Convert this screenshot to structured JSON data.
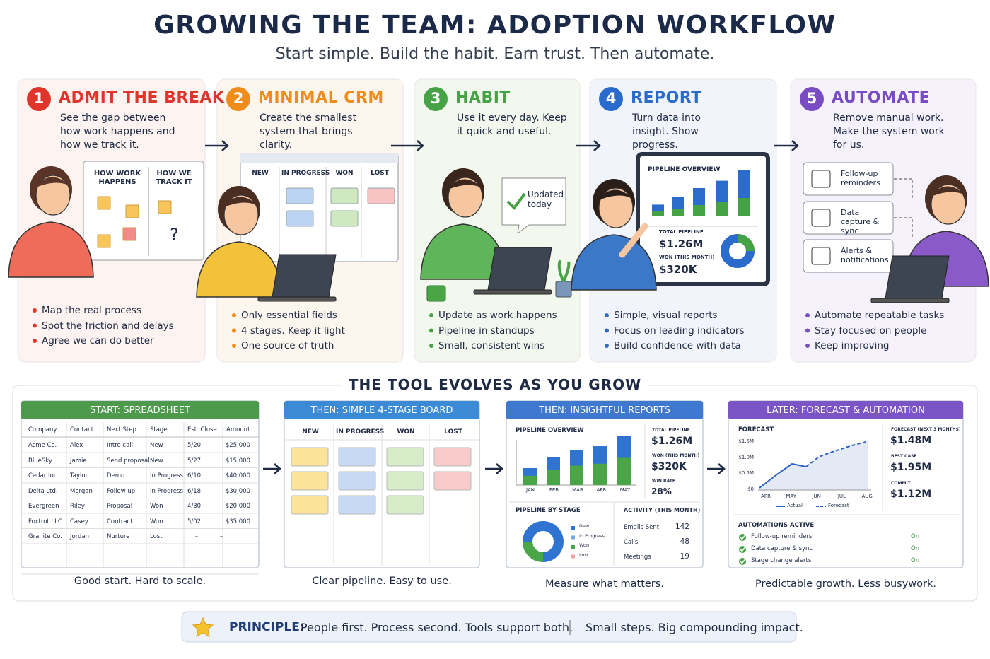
{
  "header": {
    "title": "GROWING THE TEAM: ADOPTION WORKFLOW",
    "subtitle": "Start simple. Build the habit. Earn trust. Then automate."
  },
  "steps": [
    {
      "number": 1,
      "title": "ADMIT THE BREAK",
      "color": "#e0352b",
      "description": "See the gap between how work happens and how we track it.",
      "bullets": [
        "Map the real process",
        "Spot the friction and delays",
        "Agree we can do better"
      ],
      "visual": {
        "columns": [
          "HOW WORK HAPPENS",
          "HOW WE TRACK IT"
        ],
        "mark": "?"
      }
    },
    {
      "number": 2,
      "title": "MINIMAL CRM",
      "color": "#f08c1a",
      "description": "Create the smallest system that brings clarity.",
      "bullets": [
        "Only essential fields",
        "4 stages. Keep it light",
        "One source of truth"
      ],
      "visual": {
        "columns": [
          "NEW",
          "IN PROGRESS",
          "WON",
          "LOST"
        ]
      }
    },
    {
      "number": 3,
      "title": "HABIT",
      "color": "#45a345",
      "description": "Use it every day. Keep it quick and useful.",
      "bullets": [
        "Update as work happens",
        "Pipeline in standups",
        "Small, consistent wins"
      ],
      "visual": {
        "bubble": "Updated today"
      }
    },
    {
      "number": 4,
      "title": "REPORT",
      "color": "#2a6bcc",
      "description": "Turn data into insight. Show progress.",
      "bullets": [
        "Simple, visual reports",
        "Focus on leading indicators",
        "Build confidence with data"
      ],
      "visual": {
        "title": "PIPELINE OVERVIEW",
        "metrics": [
          {
            "label": "TOTAL PIPELINE",
            "value": "$1.26M"
          },
          {
            "label": "WON (THIS MONTH)",
            "value": "$320K"
          }
        ]
      }
    },
    {
      "number": 5,
      "title": "AUTOMATE",
      "color": "#7a4cc4",
      "description": "Remove manual work. Make the system work for us.",
      "bullets": [
        "Automate repeatable tasks",
        "Stay focused on people",
        "Keep improving"
      ],
      "visual": {
        "items": [
          "Follow-up reminders",
          "Data capture & sync",
          "Alerts & notifications"
        ]
      }
    }
  ],
  "section_title": "THE TOOL EVOLVES AS YOU GROW",
  "tools": [
    {
      "title": "START: SPREADSHEET",
      "color": "#4e9a4c",
      "columns": [
        "Company",
        "Contact",
        "Next Step",
        "Stage",
        "Est. Close",
        "Amount"
      ],
      "rows": [
        [
          "Acme Co.",
          "Alex",
          "Intro call",
          "New",
          "5/20",
          "$25,000"
        ],
        [
          "BlueSky",
          "Jamie",
          "Send proposal",
          "New",
          "5/27",
          "$15,000"
        ],
        [
          "Cedar Inc.",
          "Taylor",
          "Demo",
          "In Progress",
          "6/10",
          "$40,000"
        ],
        [
          "Delta Ltd.",
          "Morgan",
          "Follow up",
          "In Progress",
          "6/18",
          "$30,000"
        ],
        [
          "Evergreen",
          "Riley",
          "Proposal",
          "Won",
          "4/30",
          "$20,000"
        ],
        [
          "Foxtrot LLC",
          "Casey",
          "Contract",
          "Won",
          "5/02",
          "$35,000"
        ],
        [
          "Granite Co.",
          "Jordan",
          "Nurture",
          "Lost",
          "–",
          "–"
        ]
      ],
      "caption": "Good start. Hard to scale."
    },
    {
      "title": "THEN: SIMPLE 4-STAGE BOARD",
      "color": "#3a8ad6",
      "columns": [
        "NEW",
        "IN PROGRESS",
        "WON",
        "LOST"
      ],
      "caption": "Clear pipeline. Easy to use."
    },
    {
      "title": "THEN: INSIGHTFUL REPORTS",
      "color": "#3f78cf",
      "overview_title": "PIPELINE OVERVIEW",
      "months": [
        "JAN",
        "FEB",
        "MAR",
        "APR",
        "MAY"
      ],
      "metrics": [
        {
          "label": "TOTAL PIPELINE",
          "value": "$1.26M"
        },
        {
          "label": "WON (THIS MONTH)",
          "value": "$320K"
        },
        {
          "label": "WIN RATE",
          "value": "28%"
        }
      ],
      "stage_title": "PIPELINE BY STAGE",
      "stages": [
        "New",
        "In Progress",
        "Won",
        "Lost"
      ],
      "activity_title": "ACTIVITY (THIS MONTH)",
      "activity": [
        {
          "label": "Emails Sent",
          "value": 142
        },
        {
          "label": "Calls",
          "value": 48
        },
        {
          "label": "Meetings",
          "value": 19
        }
      ],
      "caption": "Measure what matters."
    },
    {
      "title": "LATER: FORECAST & AUTOMATION",
      "color": "#7b55c6",
      "forecast_title": "FORECAST",
      "y_labels": [
        "$1.5M",
        "$1.0M",
        "$0.5M",
        "$0"
      ],
      "months": [
        "APR",
        "MAY",
        "JUN",
        "JUL",
        "AUG"
      ],
      "legend": [
        "Actual",
        "Forecast"
      ],
      "metrics": [
        {
          "label": "FORECAST (NEXT 3 MONTHS)",
          "value": "$1.48M"
        },
        {
          "label": "BEST CASE",
          "value": "$1.95M"
        },
        {
          "label": "COMMIT",
          "value": "$1.12M"
        }
      ],
      "automations_title": "AUTOMATIONS ACTIVE",
      "automations": [
        {
          "label": "Follow-up reminders",
          "status": "On"
        },
        {
          "label": "Data capture & sync",
          "status": "On"
        },
        {
          "label": "Stage change alerts",
          "status": "On"
        }
      ],
      "caption": "Predictable growth. Less busywork."
    }
  ],
  "principle": {
    "label": "PRINCIPLE:",
    "text": "People first. Process second. Tools support both.",
    "tagline": "Small steps. Big compounding impact."
  }
}
